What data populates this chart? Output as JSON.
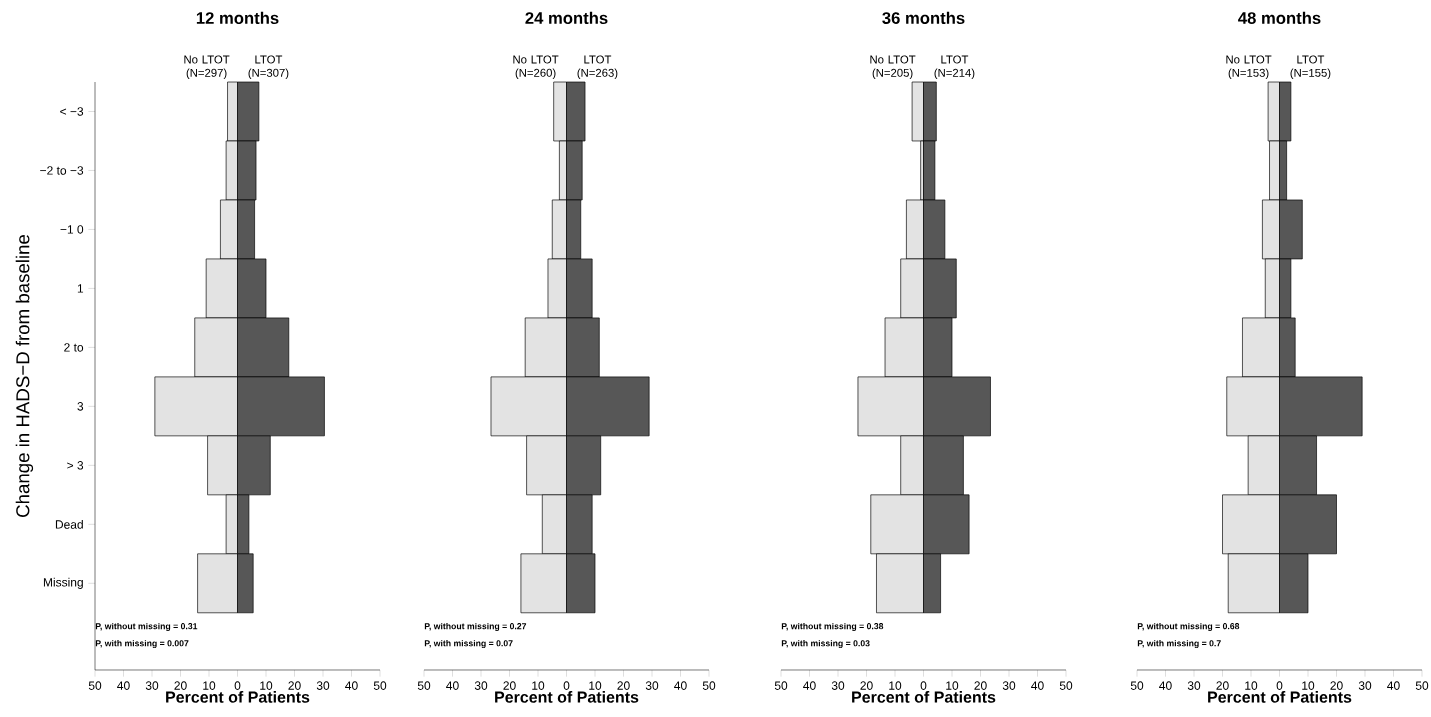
{
  "chart_data": [
    {
      "type": "bar",
      "orientation": "horizontal",
      "stacked": true,
      "title": "12 months",
      "xlabel": "Percent of Patients",
      "ylabel": "Change in HADS−D from baseline",
      "categories": [
        "< −3",
        "−2 to −3",
        "−1 0",
        "1",
        "2 to",
        "3",
        "> 3",
        "Dead",
        "Missing"
      ],
      "series": [
        {
          "name": "No LTOT (N=297)",
          "color": "#e3e3e3",
          "values": [
            -3.5,
            -4,
            -6,
            -11,
            -15,
            -29,
            -10.5,
            -4,
            -14
          ]
        },
        {
          "name": "LTOT (N=307)",
          "color": "#575757",
          "values": [
            7.5,
            6.5,
            6,
            10,
            18,
            30.5,
            11.5,
            4,
            5.5
          ]
        }
      ],
      "xlim": [
        -50,
        50
      ],
      "xticks": [
        {
          "value": -50,
          "label": "50"
        },
        {
          "value": -40,
          "label": "40"
        },
        {
          "value": -30,
          "label": "30"
        },
        {
          "value": -20,
          "label": "20"
        },
        {
          "value": -10,
          "label": "10"
        },
        0,
        10,
        20,
        30,
        40,
        50
      ],
      "annotations": [
        "P, without missing = 0.31",
        "P, with missing = 0.007"
      ]
    },
    {
      "type": "bar",
      "orientation": "horizontal",
      "stacked": true,
      "title": "24 months",
      "xlabel": "Percent of Patients",
      "categories": [
        null,
        null,
        null,
        null,
        null,
        null,
        null,
        null,
        null
      ],
      "tick_labels": "x",
      "series": [
        {
          "name": "No LTOT (N=260)",
          "color": "#e3e3e3",
          "values": [
            -4.5,
            -2.5,
            -5,
            -6.5,
            -14.5,
            -26.5,
            -14,
            -8.5,
            -16
          ]
        },
        {
          "name": "LTOT (N=263)",
          "color": "#575757",
          "values": [
            6.5,
            5.5,
            5,
            9,
            11.5,
            29,
            12,
            9,
            10
          ]
        }
      ],
      "xlim": [
        -50,
        50
      ],
      "xticks": [
        {
          "value": -50,
          "label": "50"
        },
        {
          "value": -40,
          "label": "40"
        },
        {
          "value": -30,
          "label": "30"
        },
        {
          "value": -20,
          "label": "20"
        },
        {
          "value": -10,
          "label": "10"
        },
        0,
        10,
        20,
        30,
        40,
        50
      ],
      "annotations": [
        "P, without missing = 0.27",
        "P, with missing = 0.07"
      ]
    },
    {
      "type": "bar",
      "orientation": "horizontal",
      "stacked": true,
      "title": "36 months",
      "xlabel": "Percent of Patients",
      "categories": [
        null,
        null,
        null,
        null,
        null,
        null,
        null,
        null,
        null
      ],
      "tick_labels": "x",
      "series": [
        {
          "name": "No LTOT (N=205)",
          "color": "#e3e3e3",
          "values": [
            -4,
            -1,
            -6,
            -8,
            -13.5,
            -23,
            -8,
            -18.5,
            -16.5
          ]
        },
        {
          "name": "LTOT (N=214)",
          "color": "#575757",
          "values": [
            4.5,
            4,
            7.5,
            11.5,
            10,
            23.5,
            14,
            16,
            6
          ]
        }
      ],
      "xlim": [
        -50,
        50
      ],
      "xticks": [
        {
          "value": -50,
          "label": "50"
        },
        {
          "value": -40,
          "label": "40"
        },
        {
          "value": -30,
          "label": "30"
        },
        {
          "value": -20,
          "label": "20"
        },
        {
          "value": -10,
          "label": "10"
        },
        0,
        10,
        20,
        30,
        40,
        50
      ],
      "annotations": [
        "P, without missing = 0.38",
        "P, with missing = 0.03"
      ]
    },
    {
      "type": "bar",
      "orientation": "horizontal",
      "stacked": true,
      "title": "48 months",
      "xlabel": "Percent of Patients",
      "categories": [
        null,
        null,
        null,
        null,
        null,
        null,
        null,
        null,
        null
      ],
      "tick_labels": "x",
      "series": [
        {
          "name": "No LTOT (N=153)",
          "color": "#e3e3e3",
          "values": [
            -4,
            -3.5,
            -6,
            -5,
            -13,
            -18.5,
            -11,
            -20,
            -18
          ]
        },
        {
          "name": "LTOT (N=155)",
          "color": "#575757",
          "values": [
            4,
            2.5,
            8,
            4,
            5.5,
            29,
            13,
            20,
            10
          ]
        }
      ],
      "xlim": [
        -50,
        50
      ],
      "xticks": [
        {
          "value": -50,
          "label": "50"
        },
        {
          "value": -40,
          "label": "40"
        },
        {
          "value": -30,
          "label": "30"
        },
        {
          "value": -20,
          "label": "20"
        },
        {
          "value": -10,
          "label": "10"
        },
        0,
        10,
        20,
        30,
        40,
        50
      ],
      "annotations": [
        "P, without missing = 0.68",
        "P, with missing = 0.7"
      ]
    }
  ]
}
